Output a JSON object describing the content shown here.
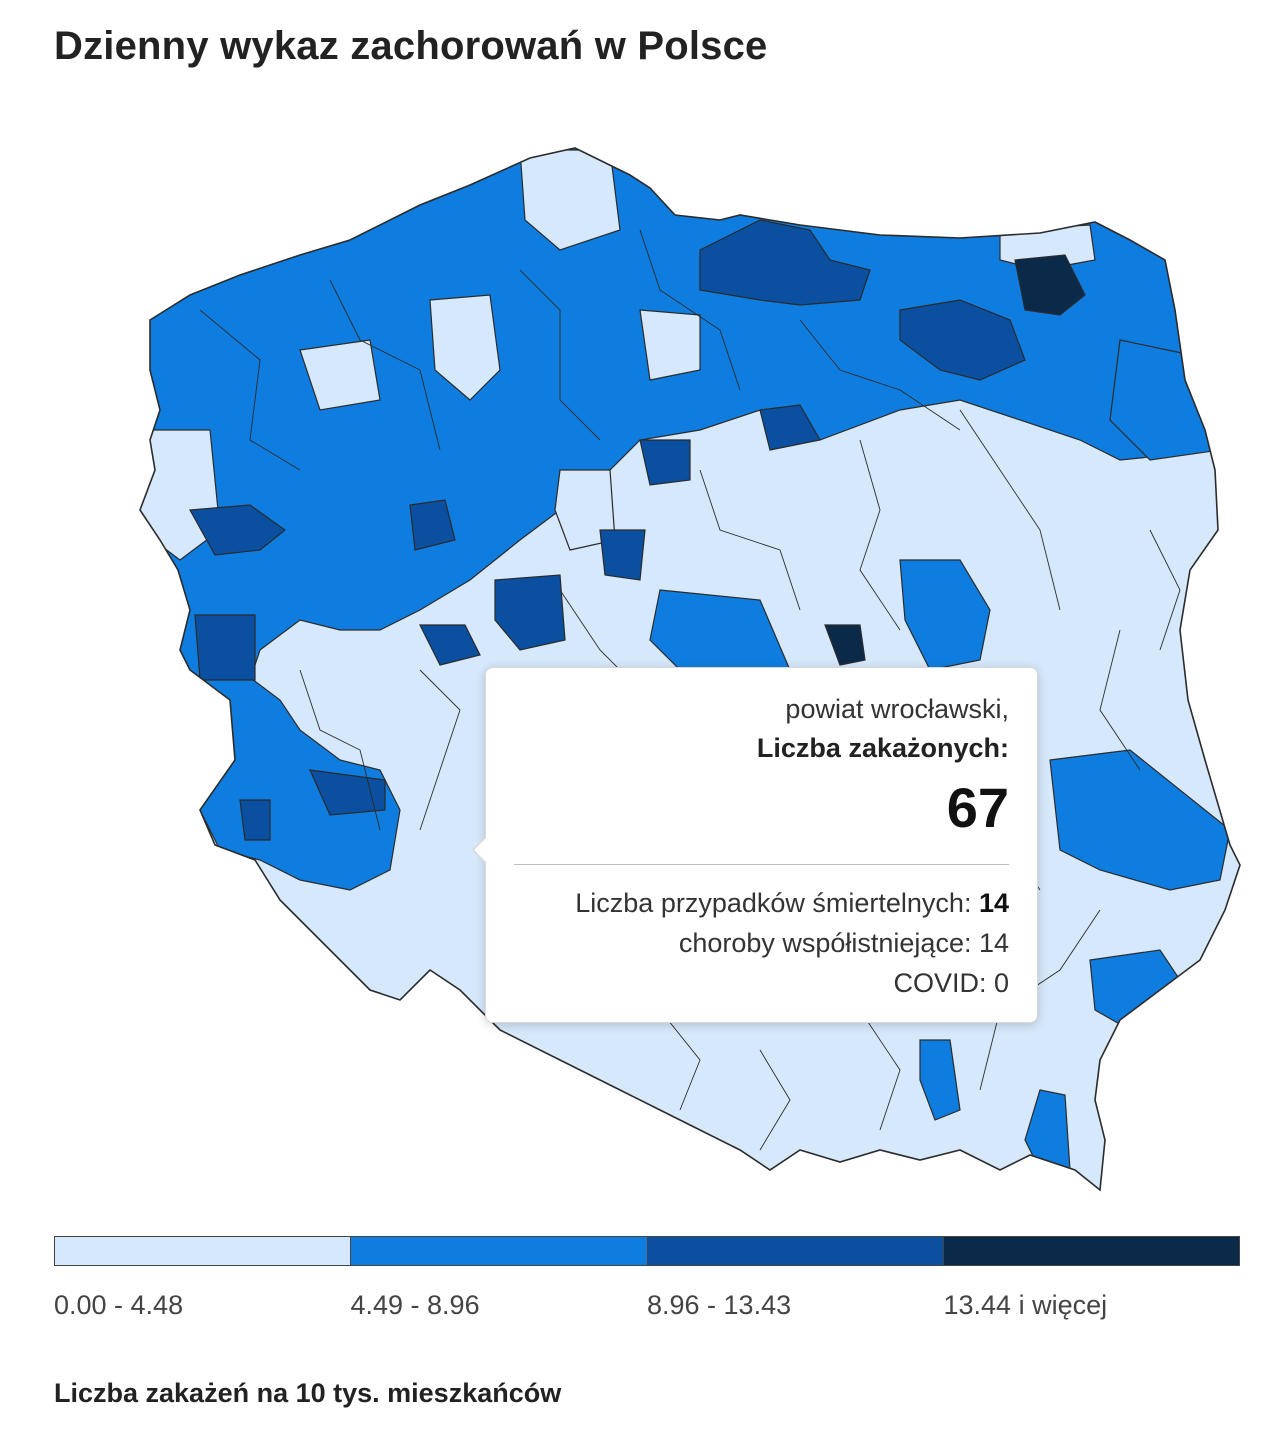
{
  "title": "Dzienny wykaz zachorowań w Polsce",
  "colors": {
    "bin1": "#d6e8fb",
    "bin2": "#0f7ddf",
    "bin3": "#0a4fa0",
    "bin4": "#0b2a4a",
    "border": "#2b2b2b"
  },
  "tooltip": {
    "region": "powiat wrocławski,",
    "label": "Liczba zakażonych:",
    "value": "67",
    "deaths_label": "Liczba przypadków śmiertelnych: ",
    "deaths_value": "14",
    "comorbid": "choroby współistniejące: 14",
    "covid": "COVID: 0"
  },
  "legend": {
    "bins": [
      {
        "label": "0.00 - 4.48",
        "color": "#d6e8fb"
      },
      {
        "label": "4.49 - 8.96",
        "color": "#0f7ddf"
      },
      {
        "label": "8.96 - 13.43",
        "color": "#0a4fa0"
      },
      {
        "label": "13.44 i więcej",
        "color": "#0b2a4a"
      }
    ],
    "caption": "Liczba zakażeń na 10 tys. mieszkańców"
  }
}
